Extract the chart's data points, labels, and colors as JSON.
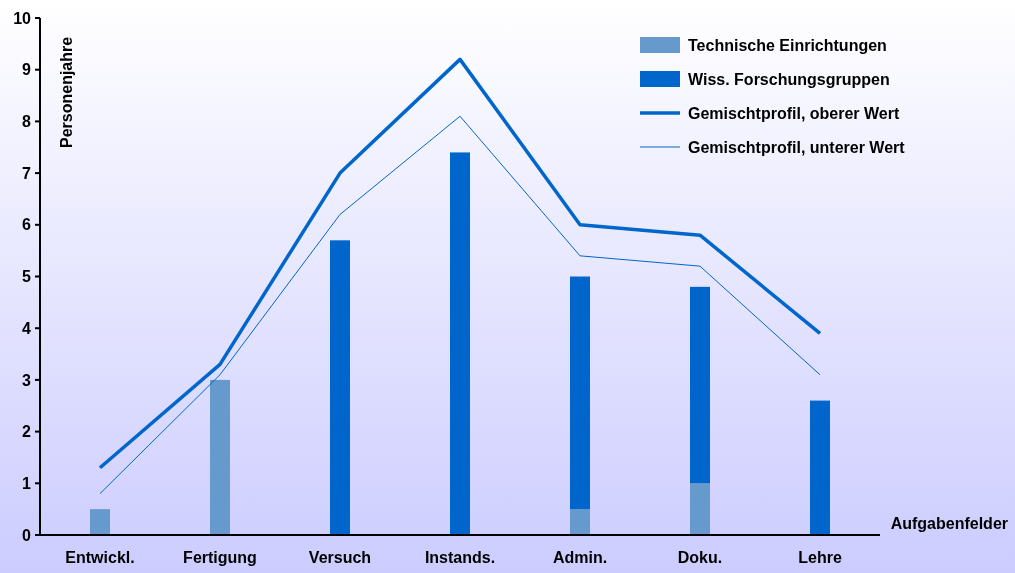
{
  "chart_data": {
    "type": "bar",
    "stacked": true,
    "xlabel": "Aufgabenfelder",
    "ylabel": "Personenjahre",
    "categories": [
      "Entwickl.",
      "Fertigung",
      "Versuch",
      "Instands.",
      "Admin.",
      "Doku.",
      "Lehre"
    ],
    "series": [
      {
        "name": "Technische Einrichtungen",
        "color": "#6699cc",
        "values": [
          0.5,
          3.0,
          null,
          null,
          0.5,
          1.0,
          null
        ]
      },
      {
        "name": "Wiss. Forschungsgruppen",
        "color": "#0066cc",
        "values": [
          null,
          null,
          5.7,
          7.4,
          4.5,
          3.8,
          2.6
        ]
      },
      {
        "name": "Gemischtprofil, oberer Wert",
        "type": "line",
        "color": "#0066cc",
        "values": [
          1.3,
          3.3,
          7.0,
          9.2,
          6.0,
          5.8,
          3.9
        ]
      },
      {
        "name": "Gemischtprofil, unterer Wert",
        "type": "line",
        "color": "#0066cc",
        "values": [
          0.8,
          3.1,
          6.2,
          8.1,
          5.4,
          5.2,
          3.1
        ]
      }
    ],
    "ylim": [
      0,
      10
    ],
    "yticks": [
      0,
      1,
      2,
      3,
      4,
      5,
      6,
      7,
      8,
      9,
      10
    ],
    "legend": "top right",
    "grid": false
  }
}
